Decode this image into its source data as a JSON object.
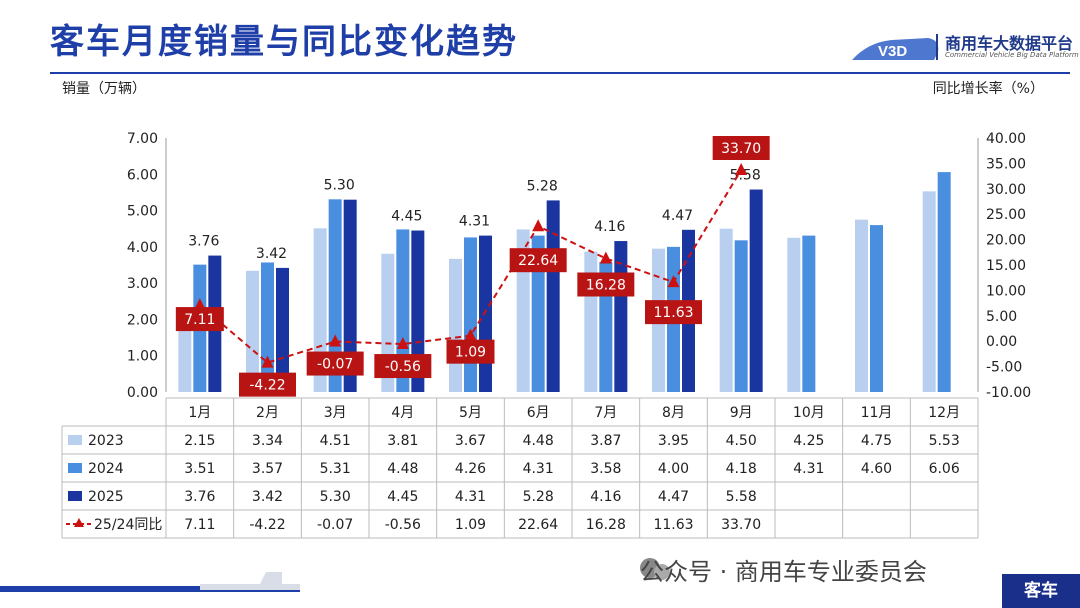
{
  "header": {
    "title": "客车月度销量与同比变化趋势",
    "logo_badge": "V3D",
    "logo_name": "商用车大数据平台",
    "logo_sub": "Commercial Vehicle Big Data Platform"
  },
  "footer": {
    "watermark": "公众号 · 商用车专业委员会",
    "tag": "客车"
  },
  "chart_data": {
    "type": "bar",
    "ylabel": "销量（万辆）",
    "y2label": "同比增长率（%）",
    "ylim": [
      0,
      7
    ],
    "yticks": [
      "0.00",
      "1.00",
      "2.00",
      "3.00",
      "4.00",
      "5.00",
      "6.00",
      "7.00"
    ],
    "y2lim": [
      -10,
      40
    ],
    "y2ticks": [
      "-10.00",
      "-5.00",
      "0.00",
      "5.00",
      "10.00",
      "15.00",
      "20.00",
      "25.00",
      "30.00",
      "35.00",
      "40.00"
    ],
    "categories": [
      "1月",
      "2月",
      "3月",
      "4月",
      "5月",
      "6月",
      "7月",
      "8月",
      "9月",
      "10月",
      "11月",
      "12月"
    ],
    "series": [
      {
        "name": "2023",
        "color": "#b8cff0",
        "values": [
          2.15,
          3.34,
          4.51,
          3.81,
          3.67,
          4.48,
          3.87,
          3.95,
          4.5,
          4.25,
          4.75,
          5.53
        ]
      },
      {
        "name": "2024",
        "color": "#4a8ee0",
        "values": [
          3.51,
          3.57,
          5.31,
          4.48,
          4.26,
          4.31,
          3.58,
          4.0,
          4.18,
          4.31,
          4.6,
          6.06
        ]
      },
      {
        "name": "2025",
        "color": "#1a35a0",
        "values": [
          3.76,
          3.42,
          5.3,
          4.45,
          4.31,
          5.28,
          4.16,
          4.47,
          5.58,
          null,
          null,
          null
        ]
      }
    ],
    "line": {
      "name": "25/24同比",
      "color": "#cc1111",
      "values": [
        7.11,
        -4.22,
        -0.07,
        -0.56,
        1.09,
        22.64,
        16.28,
        11.63,
        33.7,
        null,
        null,
        null
      ]
    },
    "bar_labels": [
      "3.76",
      "3.42",
      "5.30",
      "4.45",
      "4.31",
      "5.28",
      "4.16",
      "4.47",
      "5.58"
    ],
    "line_labels": [
      "7.11",
      "-4.22",
      "-0.07",
      "-0.56",
      "1.09",
      "22.64",
      "16.28",
      "11.63",
      "33.70"
    ],
    "table": {
      "rows": [
        {
          "label": "2023",
          "cells": [
            "2.15",
            "3.34",
            "4.51",
            "3.81",
            "3.67",
            "4.48",
            "3.87",
            "3.95",
            "4.50",
            "4.25",
            "4.75",
            "5.53"
          ]
        },
        {
          "label": "2024",
          "cells": [
            "3.51",
            "3.57",
            "5.31",
            "4.48",
            "4.26",
            "4.31",
            "3.58",
            "4.00",
            "4.18",
            "4.31",
            "4.60",
            "6.06"
          ]
        },
        {
          "label": "2025",
          "cells": [
            "3.76",
            "3.42",
            "5.30",
            "4.45",
            "4.31",
            "5.28",
            "4.16",
            "4.47",
            "5.58",
            "",
            "",
            ""
          ]
        },
        {
          "label": "25/24同比",
          "cells": [
            "7.11",
            "-4.22",
            "-0.07",
            "-0.56",
            "1.09",
            "22.64",
            "16.28",
            "11.63",
            "33.70",
            "",
            "",
            ""
          ]
        }
      ]
    }
  }
}
